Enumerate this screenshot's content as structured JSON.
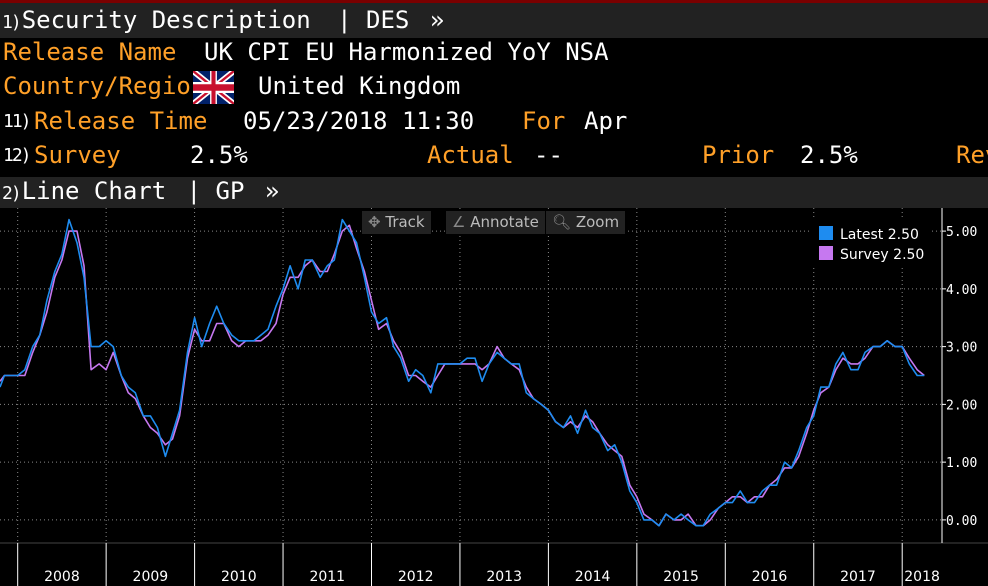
{
  "header": {
    "num": "1)",
    "title": "Security Description",
    "sep": "| DES",
    "more": "»"
  },
  "release": {
    "name_label": "Release Name",
    "name_value": "UK CPI EU Harmonized YoY NSA",
    "country_label": "Country/Region",
    "country_value": "United Kingdom",
    "time_num": "11)",
    "time_label": "Release Time",
    "time_value": "05/23/2018 11:30",
    "for_label": "For",
    "for_value": "Apr",
    "survey_num": "12)",
    "survey_label": "Survey",
    "survey_value": "2.5%",
    "actual_label": "Actual",
    "actual_value": "--",
    "prior_label": "Prior",
    "prior_value": "2.5%",
    "rev_label": "Rev"
  },
  "chart_header": {
    "num": "2)",
    "title": "Line Chart",
    "sep": "| GP",
    "more": "»"
  },
  "toolbar": {
    "track": "Track",
    "annotate": "Annotate",
    "zoom": "Zoom"
  },
  "colors": {
    "amber": "#ffa028",
    "latest": "#1e8cf0",
    "survey": "#c678f0",
    "background": "#000000",
    "header_bar": "#222222"
  },
  "chart_data": {
    "type": "line",
    "x_ticks": [
      "2008",
      "2009",
      "2010",
      "2011",
      "2012",
      "2013",
      "2014",
      "2015",
      "2016",
      "2017",
      "2018"
    ],
    "y_ticks": [
      "5.00",
      "4.00",
      "3.00",
      "2.00",
      "1.00",
      "0.00"
    ],
    "ylim": [
      -0.4,
      5.4
    ],
    "xlim": [
      2007.8,
      2018.45
    ],
    "grid": true,
    "legend_position": "top-right",
    "series": [
      {
        "name": "Latest",
        "legend_value": "2.50",
        "color": "#1e8cf0",
        "x": [
          2007.8,
          2007.85,
          2007.92,
          2008.0,
          2008.08,
          2008.17,
          2008.25,
          2008.33,
          2008.42,
          2008.5,
          2008.58,
          2008.67,
          2008.75,
          2008.83,
          2008.92,
          2009.0,
          2009.08,
          2009.17,
          2009.25,
          2009.33,
          2009.42,
          2009.5,
          2009.58,
          2009.67,
          2009.75,
          2009.83,
          2009.92,
          2010.0,
          2010.08,
          2010.17,
          2010.25,
          2010.33,
          2010.42,
          2010.5,
          2010.58,
          2010.67,
          2010.75,
          2010.83,
          2010.92,
          2011.0,
          2011.08,
          2011.17,
          2011.25,
          2011.33,
          2011.42,
          2011.5,
          2011.58,
          2011.67,
          2011.75,
          2011.83,
          2011.92,
          2012.0,
          2012.08,
          2012.17,
          2012.25,
          2012.33,
          2012.42,
          2012.5,
          2012.58,
          2012.67,
          2012.75,
          2012.83,
          2012.92,
          2013.0,
          2013.08,
          2013.17,
          2013.25,
          2013.33,
          2013.42,
          2013.5,
          2013.58,
          2013.67,
          2013.75,
          2013.83,
          2013.92,
          2014.0,
          2014.08,
          2014.17,
          2014.25,
          2014.33,
          2014.42,
          2014.5,
          2014.58,
          2014.67,
          2014.75,
          2014.83,
          2014.92,
          2015.0,
          2015.08,
          2015.17,
          2015.25,
          2015.33,
          2015.42,
          2015.5,
          2015.58,
          2015.67,
          2015.75,
          2015.83,
          2015.92,
          2016.0,
          2016.08,
          2016.17,
          2016.25,
          2016.33,
          2016.42,
          2016.5,
          2016.58,
          2016.67,
          2016.75,
          2016.83,
          2016.92,
          2017.0,
          2017.08,
          2017.17,
          2017.25,
          2017.33,
          2017.42,
          2017.5,
          2017.58,
          2017.67,
          2017.75,
          2017.83,
          2017.92,
          2018.0,
          2018.08,
          2018.17,
          2018.25
        ],
        "y": [
          2.3,
          2.5,
          2.5,
          2.5,
          2.6,
          3.0,
          3.2,
          3.8,
          4.3,
          4.6,
          5.2,
          4.8,
          4.2,
          3.0,
          3.0,
          3.1,
          3.0,
          2.5,
          2.3,
          2.2,
          1.8,
          1.8,
          1.6,
          1.1,
          1.5,
          1.9,
          2.9,
          3.5,
          3.0,
          3.4,
          3.7,
          3.4,
          3.2,
          3.1,
          3.1,
          3.1,
          3.2,
          3.3,
          3.7,
          4.0,
          4.4,
          4.0,
          4.5,
          4.5,
          4.2,
          4.4,
          4.5,
          5.2,
          5.0,
          4.8,
          4.2,
          3.6,
          3.4,
          3.5,
          3.0,
          2.8,
          2.4,
          2.6,
          2.5,
          2.2,
          2.7,
          2.7,
          2.7,
          2.7,
          2.8,
          2.8,
          2.4,
          2.7,
          2.9,
          2.8,
          2.7,
          2.7,
          2.2,
          2.1,
          2.0,
          1.9,
          1.7,
          1.6,
          1.8,
          1.5,
          1.9,
          1.6,
          1.5,
          1.2,
          1.3,
          1.0,
          0.5,
          0.3,
          0.0,
          0.0,
          -0.1,
          0.1,
          0.0,
          0.1,
          0.0,
          -0.1,
          -0.1,
          0.1,
          0.2,
          0.3,
          0.3,
          0.5,
          0.3,
          0.3,
          0.5,
          0.6,
          0.6,
          1.0,
          0.9,
          1.2,
          1.6,
          1.8,
          2.3,
          2.3,
          2.7,
          2.9,
          2.6,
          2.6,
          2.9,
          3.0,
          3.0,
          3.1,
          3.0,
          3.0,
          2.7,
          2.5,
          2.5
        ]
      },
      {
        "name": "Survey",
        "legend_value": "2.50",
        "color": "#c678f0",
        "x": [
          2007.8,
          2007.85,
          2007.92,
          2008.0,
          2008.08,
          2008.17,
          2008.25,
          2008.33,
          2008.42,
          2008.5,
          2008.58,
          2008.67,
          2008.75,
          2008.83,
          2008.92,
          2009.0,
          2009.08,
          2009.17,
          2009.25,
          2009.33,
          2009.42,
          2009.5,
          2009.58,
          2009.67,
          2009.75,
          2009.83,
          2009.92,
          2010.0,
          2010.08,
          2010.17,
          2010.25,
          2010.33,
          2010.42,
          2010.5,
          2010.58,
          2010.67,
          2010.75,
          2010.83,
          2010.92,
          2011.0,
          2011.08,
          2011.17,
          2011.25,
          2011.33,
          2011.42,
          2011.5,
          2011.58,
          2011.67,
          2011.75,
          2011.83,
          2011.92,
          2012.0,
          2012.08,
          2012.17,
          2012.25,
          2012.33,
          2012.42,
          2012.5,
          2012.58,
          2012.67,
          2012.75,
          2012.83,
          2012.92,
          2013.0,
          2013.08,
          2013.17,
          2013.25,
          2013.33,
          2013.42,
          2013.5,
          2013.58,
          2013.67,
          2013.75,
          2013.83,
          2013.92,
          2014.0,
          2014.08,
          2014.17,
          2014.25,
          2014.33,
          2014.42,
          2014.5,
          2014.58,
          2014.67,
          2014.75,
          2014.83,
          2014.92,
          2015.0,
          2015.08,
          2015.17,
          2015.25,
          2015.33,
          2015.42,
          2015.5,
          2015.58,
          2015.67,
          2015.75,
          2015.83,
          2015.92,
          2016.0,
          2016.08,
          2016.17,
          2016.25,
          2016.33,
          2016.42,
          2016.5,
          2016.58,
          2016.67,
          2016.75,
          2016.83,
          2016.92,
          2017.0,
          2017.08,
          2017.17,
          2017.25,
          2017.33,
          2017.42,
          2017.5,
          2017.58,
          2017.67,
          2017.75,
          2017.83,
          2017.92,
          2018.0,
          2018.08,
          2018.17,
          2018.25
        ],
        "y": [
          2.4,
          2.5,
          2.5,
          2.5,
          2.5,
          2.9,
          3.2,
          3.6,
          4.2,
          4.5,
          5.0,
          5.0,
          4.4,
          2.6,
          2.7,
          2.6,
          2.9,
          2.5,
          2.2,
          2.1,
          1.8,
          1.6,
          1.5,
          1.3,
          1.4,
          1.8,
          2.8,
          3.3,
          3.1,
          3.1,
          3.4,
          3.4,
          3.1,
          3.0,
          3.1,
          3.1,
          3.1,
          3.2,
          3.4,
          3.9,
          4.2,
          4.2,
          4.4,
          4.5,
          4.3,
          4.3,
          4.6,
          5.0,
          5.1,
          4.7,
          4.3,
          3.8,
          3.3,
          3.4,
          3.1,
          2.9,
          2.5,
          2.5,
          2.4,
          2.3,
          2.5,
          2.7,
          2.7,
          2.7,
          2.7,
          2.7,
          2.6,
          2.7,
          3.0,
          2.8,
          2.7,
          2.6,
          2.3,
          2.1,
          2.0,
          1.9,
          1.7,
          1.6,
          1.7,
          1.6,
          1.8,
          1.7,
          1.5,
          1.3,
          1.2,
          1.1,
          0.6,
          0.4,
          0.1,
          0.0,
          -0.1,
          0.1,
          0.0,
          0.0,
          0.1,
          -0.1,
          -0.1,
          0.0,
          0.2,
          0.3,
          0.4,
          0.4,
          0.3,
          0.4,
          0.4,
          0.6,
          0.7,
          0.9,
          0.9,
          1.1,
          1.5,
          1.9,
          2.2,
          2.3,
          2.6,
          2.8,
          2.7,
          2.7,
          2.8,
          3.0,
          3.0,
          3.1,
          3.0,
          3.0,
          2.8,
          2.6,
          2.5
        ]
      }
    ]
  }
}
